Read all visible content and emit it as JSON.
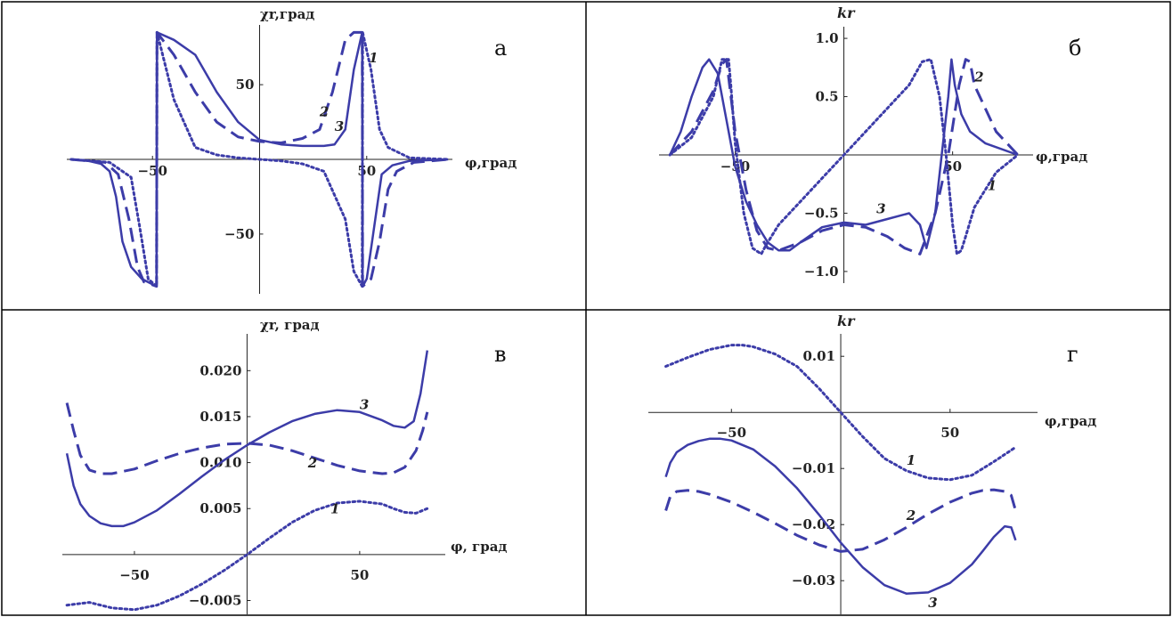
{
  "colors": {
    "curve": "#3c3ca8",
    "axis": "#222222",
    "border": "#000000"
  },
  "chart_data": [
    {
      "type": "line",
      "panel_letter": "а",
      "ylabel": "χr,град",
      "xlabel": "φ,град",
      "xlim": [
        -90,
        90
      ],
      "ylim": [
        -90,
        90
      ],
      "xticks": [
        -50,
        50
      ],
      "yticks": [
        50,
        -50
      ],
      "curve_labels": [
        {
          "text": "1",
          "x": 51,
          "y": 65
        },
        {
          "text": "2",
          "x": 28,
          "y": 29
        },
        {
          "text": "3",
          "x": 35,
          "y": 19
        }
      ],
      "series": [
        {
          "label": "1",
          "style": "dotted",
          "x": [
            -88,
            -70,
            -60,
            -56,
            -52,
            -48.1,
            -47.9,
            -40,
            -30,
            -20,
            -10,
            0,
            10,
            20,
            30,
            40,
            44,
            47.9,
            48.1,
            52,
            56,
            60,
            70,
            88
          ],
          "y": [
            0,
            -2,
            -12,
            -45,
            -80,
            -85,
            85,
            40,
            8,
            3,
            1,
            0,
            -1,
            -3,
            -8,
            -40,
            -75,
            -85,
            85,
            60,
            20,
            8,
            1,
            0
          ]
        },
        {
          "label": "2",
          "style": "dashed",
          "x": [
            -88,
            -72,
            -66,
            -61,
            -57,
            -54,
            -48.1,
            -47.9,
            -40,
            -30,
            -20,
            -10,
            0,
            10,
            20,
            28,
            34,
            40,
            44,
            47.9,
            48.1,
            52,
            56,
            60,
            64,
            72,
            88
          ],
          "y": [
            0,
            -2,
            -10,
            -40,
            -72,
            -82,
            -85,
            85,
            70,
            45,
            25,
            15,
            12,
            11,
            14,
            20,
            45,
            80,
            85,
            85,
            -85,
            -80,
            -55,
            -20,
            -8,
            -2,
            0
          ]
        },
        {
          "label": "3",
          "style": "solid",
          "x": [
            -88,
            -80,
            -74,
            -70,
            -67,
            -64,
            -60,
            -55,
            -48.1,
            -47.9,
            -40,
            -30,
            -20,
            -10,
            0,
            10,
            20,
            30,
            35,
            40,
            44,
            47.9,
            48.1,
            50,
            53,
            57,
            62,
            70,
            88
          ],
          "y": [
            0,
            -1,
            -3,
            -8,
            -25,
            -55,
            -72,
            -80,
            -85,
            85,
            80,
            70,
            45,
            25,
            13,
            10,
            9,
            9,
            10,
            20,
            60,
            85,
            -85,
            -80,
            -50,
            -10,
            -4,
            -1,
            0
          ]
        }
      ]
    },
    {
      "type": "line",
      "panel_letter": "б",
      "ylabel": "kr",
      "xlabel": "φ,град",
      "xlim": [
        -85,
        87
      ],
      "ylim": [
        -1.1,
        1.1
      ],
      "xticks": [
        -50,
        50
      ],
      "yticks": [
        1.0,
        0.5,
        -0.5,
        -1.0
      ],
      "curve_labels": [
        {
          "text": "1",
          "x": 66,
          "y": -0.3
        },
        {
          "text": "2",
          "x": 60,
          "y": 0.63
        },
        {
          "text": "3",
          "x": 15,
          "y": -0.5
        }
      ],
      "series": [
        {
          "label": "1",
          "style": "dotted",
          "x": [
            -80,
            -70,
            -60,
            -56,
            -53,
            -52,
            -50,
            -46,
            -42,
            -38,
            -36,
            -30,
            -20,
            -10,
            0,
            10,
            20,
            30,
            36,
            40,
            44,
            47,
            50,
            52,
            54,
            56,
            60,
            70,
            80
          ],
          "y": [
            0,
            0.15,
            0.5,
            0.82,
            0.82,
            0.6,
            0.1,
            -0.5,
            -0.8,
            -0.85,
            -0.78,
            -0.6,
            -0.4,
            -0.2,
            0,
            0.2,
            0.4,
            0.6,
            0.8,
            0.82,
            0.5,
            0,
            -0.6,
            -0.85,
            -0.82,
            -0.7,
            -0.45,
            -0.15,
            0
          ]
        },
        {
          "label": "2",
          "style": "dashed",
          "x": [
            -80,
            -70,
            -60,
            -56,
            -54,
            -50,
            -45,
            -40,
            -35,
            -30,
            -20,
            -10,
            0,
            10,
            20,
            28,
            35,
            42,
            48,
            53,
            56,
            58,
            60,
            70,
            80
          ],
          "y": [
            0,
            0.2,
            0.55,
            0.78,
            0.82,
            0.2,
            -0.3,
            -0.65,
            -0.8,
            -0.82,
            -0.75,
            -0.65,
            -0.6,
            -0.62,
            -0.7,
            -0.8,
            -0.85,
            -0.5,
            0,
            0.6,
            0.82,
            0.8,
            0.6,
            0.2,
            0
          ]
        },
        {
          "label": "3",
          "style": "solid",
          "x": [
            -80,
            -75,
            -70,
            -65,
            -62,
            -58,
            -54,
            -50,
            -45,
            -40,
            -35,
            -30,
            -25,
            -20,
            -10,
            0,
            10,
            20,
            30,
            35,
            38,
            42,
            45,
            48,
            49.5,
            51,
            54,
            58,
            65,
            80
          ],
          "y": [
            0,
            0.2,
            0.5,
            0.75,
            0.82,
            0.7,
            0.3,
            -0.1,
            -0.4,
            -0.6,
            -0.75,
            -0.82,
            -0.82,
            -0.75,
            -0.62,
            -0.58,
            -0.6,
            -0.55,
            -0.5,
            -0.6,
            -0.8,
            -0.5,
            0,
            0.5,
            0.82,
            0.6,
            0.35,
            0.2,
            0.1,
            0
          ]
        }
      ]
    },
    {
      "type": "line",
      "panel_letter": "в",
      "ylabel": "χr, град",
      "xlabel": "φ, град",
      "xlim": [
        -82,
        88
      ],
      "ylim": [
        -0.0065,
        0.024
      ],
      "xticks": [
        -50,
        50
      ],
      "yticks": [
        0.02,
        0.015,
        0.01,
        0.005,
        -0.005
      ],
      "ytick_labels": [
        "0.020",
        "0.015",
        "0.010",
        "0.005",
        "−0.005"
      ],
      "curve_labels": [
        {
          "text": "1",
          "x": 37,
          "y": 0.0045
        },
        {
          "text": "2",
          "x": 27,
          "y": 0.0095
        },
        {
          "text": "3",
          "x": 50,
          "y": 0.0158
        }
      ],
      "series": [
        {
          "label": "1",
          "style": "dotted",
          "x": [
            -80,
            -70,
            -60,
            -50,
            -40,
            -30,
            -20,
            -10,
            0,
            10,
            20,
            30,
            40,
            50,
            60,
            65,
            70,
            75,
            80
          ],
          "y": [
            -0.0055,
            -0.0052,
            -0.0058,
            -0.006,
            -0.0055,
            -0.0045,
            -0.0032,
            -0.0017,
            0,
            0.0018,
            0.0035,
            0.0048,
            0.0056,
            0.0058,
            0.0055,
            0.005,
            0.0046,
            0.0045,
            0.005
          ]
        },
        {
          "label": "2",
          "style": "dashed",
          "x": [
            -80,
            -77,
            -74,
            -70,
            -65,
            -60,
            -50,
            -40,
            -30,
            -20,
            -10,
            0,
            10,
            20,
            30,
            40,
            50,
            60,
            65,
            70,
            75,
            78,
            80
          ],
          "y": [
            0.0165,
            0.0135,
            0.0108,
            0.0092,
            0.0088,
            0.0088,
            0.0093,
            0.0102,
            0.011,
            0.0116,
            0.012,
            0.0121,
            0.0119,
            0.0113,
            0.0105,
            0.0097,
            0.0091,
            0.0088,
            0.0089,
            0.0095,
            0.0113,
            0.0135,
            0.0155
          ]
        },
        {
          "label": "3",
          "style": "solid",
          "x": [
            -80,
            -77,
            -74,
            -70,
            -65,
            -60,
            -55,
            -50,
            -40,
            -30,
            -20,
            -10,
            0,
            10,
            20,
            30,
            40,
            50,
            60,
            65,
            70,
            74,
            77,
            80
          ],
          "y": [
            0.011,
            0.0075,
            0.0055,
            0.0042,
            0.0034,
            0.0031,
            0.0031,
            0.0035,
            0.0048,
            0.0066,
            0.0085,
            0.0103,
            0.0119,
            0.0133,
            0.0145,
            0.0153,
            0.0157,
            0.0155,
            0.0146,
            0.014,
            0.0138,
            0.0145,
            0.0175,
            0.0222
          ]
        }
      ]
    },
    {
      "type": "line",
      "panel_letter": "г",
      "ylabel": "kr",
      "xlabel": "φ,град",
      "xlim": [
        -88,
        90
      ],
      "ylim": [
        -0.036,
        0.014
      ],
      "xticks": [
        -50,
        50
      ],
      "yticks": [
        0.01,
        -0.01,
        -0.02,
        -0.03
      ],
      "ytick_labels": [
        "0.01",
        "−0.01",
        "−0.02",
        "−0.03"
      ],
      "curve_labels": [
        {
          "text": "1",
          "x": 30,
          "y": -0.0093
        },
        {
          "text": "2",
          "x": 30,
          "y": -0.0192
        },
        {
          "text": "3",
          "x": 40,
          "y": -0.0347
        }
      ],
      "series": [
        {
          "label": "1",
          "style": "dotted",
          "x": [
            -80,
            -70,
            -60,
            -50,
            -45,
            -40,
            -30,
            -20,
            -10,
            0,
            10,
            20,
            30,
            40,
            50,
            60,
            70,
            80
          ],
          "y": [
            0.0082,
            0.0098,
            0.0112,
            0.012,
            0.012,
            0.0117,
            0.0104,
            0.0082,
            0.0043,
            0,
            -0.0043,
            -0.0082,
            -0.0104,
            -0.0117,
            -0.012,
            -0.0112,
            -0.0088,
            -0.0062
          ]
        },
        {
          "label": "2",
          "style": "dashed",
          "x": [
            -80,
            -78,
            -75,
            -70,
            -65,
            -60,
            -50,
            -40,
            -30,
            -20,
            -10,
            0,
            10,
            20,
            30,
            40,
            50,
            60,
            65,
            70,
            75,
            78,
            80
          ],
          "y": [
            -0.0175,
            -0.015,
            -0.0141,
            -0.0139,
            -0.0141,
            -0.0146,
            -0.016,
            -0.0178,
            -0.0198,
            -0.0219,
            -0.0236,
            -0.0248,
            -0.0244,
            -0.0227,
            -0.0205,
            -0.0181,
            -0.016,
            -0.0144,
            -0.0139,
            -0.0138,
            -0.0141,
            -0.0148,
            -0.0175
          ]
        },
        {
          "label": "3",
          "style": "solid",
          "x": [
            -80,
            -78,
            -75,
            -70,
            -65,
            -60,
            -55,
            -50,
            -40,
            -30,
            -20,
            -10,
            0,
            10,
            20,
            30,
            40,
            50,
            60,
            65,
            70,
            75,
            78,
            80
          ],
          "y": [
            -0.0115,
            -0.009,
            -0.0071,
            -0.0058,
            -0.0051,
            -0.0047,
            -0.0047,
            -0.005,
            -0.0066,
            -0.0096,
            -0.0135,
            -0.0182,
            -0.0232,
            -0.0276,
            -0.0308,
            -0.0323,
            -0.0321,
            -0.0304,
            -0.0271,
            -0.0247,
            -0.0222,
            -0.0203,
            -0.0205,
            -0.0228
          ]
        }
      ]
    }
  ]
}
